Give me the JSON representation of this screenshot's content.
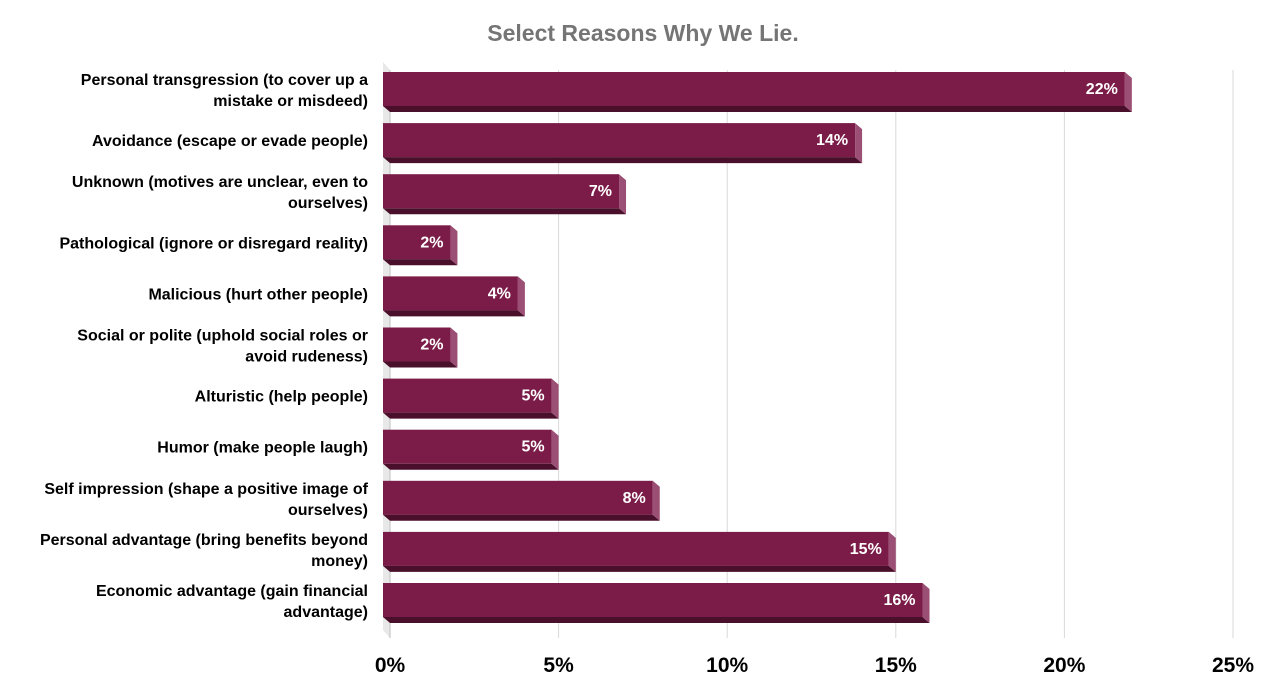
{
  "chart_data": {
    "type": "bar",
    "orientation": "horizontal",
    "title": "Select Reasons Why We Lie.",
    "categories": [
      [
        "Personal transgression (to cover up a",
        "mistake or misdeed)"
      ],
      [
        "Avoidance (escape or evade people)"
      ],
      [
        "Unknown (motives are unclear, even to",
        "ourselves)"
      ],
      [
        "Pathological (ignore or disregard reality)"
      ],
      [
        "Malicious (hurt other people)"
      ],
      [
        "Social or polite (uphold social roles or",
        "avoid rudeness)"
      ],
      [
        "Alturistic (help people)"
      ],
      [
        "Humor (make people laugh)"
      ],
      [
        "Self impression (shape a positive image of",
        "ourselves)"
      ],
      [
        "Personal advantage (bring benefits beyond",
        "money)"
      ],
      [
        "Economic advantage (gain financial",
        "advantage)"
      ]
    ],
    "values": [
      22,
      14,
      7,
      2,
      4,
      2,
      5,
      5,
      8,
      15,
      16
    ],
    "data_labels": [
      "22%",
      "14%",
      "7%",
      "2%",
      "4%",
      "2%",
      "5%",
      "5%",
      "8%",
      "15%",
      "16%"
    ],
    "xlim": [
      0,
      25
    ],
    "xticks": [
      0,
      5,
      10,
      15,
      20,
      25
    ],
    "xtick_labels": [
      "0%",
      "5%",
      "10%",
      "15%",
      "20%",
      "25%"
    ],
    "grid": true,
    "legend": "none",
    "colors": {
      "bar_front": "#7a1c47",
      "bar_bottom": "#4a0f2a",
      "bar_side": "#9b4f74",
      "grid": "#d9d9d9",
      "title": "#757575",
      "wall": "#e8e8e8"
    }
  }
}
